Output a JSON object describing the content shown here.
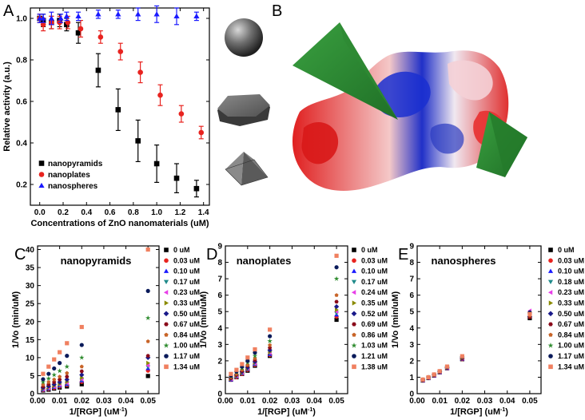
{
  "labels": {
    "a": "A",
    "b": "B",
    "c": "C",
    "d": "D",
    "e": "E"
  },
  "colors": {
    "black": "#000000",
    "red": "#e8231f",
    "blue": "#1a1aff",
    "teal": "#1f8a8a",
    "magenta": "#e83fe8",
    "olive": "#8a8a00",
    "navy": "#1a1a8a",
    "maroon": "#8a0a1a",
    "orange": "#c86428",
    "green": "#2e8b2e",
    "darkblue": "#0a1a5a",
    "salmon": "#f08060"
  },
  "shapes": {
    "items": [
      "sphere-icon",
      "plate-icon",
      "pyramid-icon"
    ]
  },
  "chart_data": [
    {
      "type": "scatter",
      "ylabel": "Relative activity (a.u.)",
      "xlabel": "Concentrations of ZnO nanomaterials (uM)",
      "xlim": [
        -0.08,
        1.45
      ],
      "ylim": [
        0.1,
        1.05
      ],
      "xticks": [
        "0.0",
        "0.2",
        "0.4",
        "0.6",
        "0.8",
        "1.0",
        "1.2",
        "1.4"
      ],
      "xtickvals": [
        0.0,
        0.2,
        0.4,
        0.6,
        0.8,
        1.0,
        1.2,
        1.4
      ],
      "yticks": [
        "0.2",
        "0.4",
        "0.6",
        "0.8",
        "1.0"
      ],
      "ytickvals": [
        0.2,
        0.4,
        0.6,
        0.8,
        1.0
      ],
      "series": [
        {
          "name": "nanopyramids",
          "marker": "square",
          "color": "#000000",
          "x": [
            0,
            0.03,
            0.1,
            0.17,
            0.23,
            0.33,
            0.5,
            0.67,
            0.84,
            1.0,
            1.17,
            1.34
          ],
          "y": [
            1.0,
            0.99,
            0.98,
            0.99,
            0.97,
            0.93,
            0.75,
            0.56,
            0.41,
            0.3,
            0.23,
            0.18
          ],
          "err": [
            0.02,
            0.03,
            0.03,
            0.03,
            0.03,
            0.05,
            0.08,
            0.1,
            0.1,
            0.09,
            0.07,
            0.04
          ]
        },
        {
          "name": "nanoplates",
          "marker": "circle",
          "color": "#e8231f",
          "x": [
            0,
            0.03,
            0.1,
            0.17,
            0.24,
            0.35,
            0.52,
            0.69,
            0.86,
            1.03,
            1.21,
            1.38
          ],
          "y": [
            1.0,
            0.97,
            0.98,
            0.98,
            0.98,
            0.95,
            0.91,
            0.84,
            0.74,
            0.63,
            0.54,
            0.45
          ],
          "err": [
            0.02,
            0.03,
            0.03,
            0.03,
            0.03,
            0.04,
            0.03,
            0.04,
            0.05,
            0.05,
            0.04,
            0.03
          ]
        },
        {
          "name": "nanospheres",
          "marker": "triangle",
          "color": "#1a1aff",
          "x": [
            0,
            0.03,
            0.1,
            0.18,
            0.23,
            0.33,
            0.5,
            0.67,
            0.84,
            1.0,
            1.17,
            1.34
          ],
          "y": [
            1.0,
            1.0,
            1.0,
            1.0,
            1.01,
            1.01,
            1.02,
            1.02,
            1.02,
            1.02,
            1.01,
            1.01
          ],
          "err": [
            0.02,
            0.02,
            0.03,
            0.02,
            0.02,
            0.02,
            0.02,
            0.02,
            0.03,
            0.04,
            0.04,
            0.02
          ]
        }
      ]
    },
    {
      "type": "scatter",
      "title": "nanopyramids",
      "ylabel": "1/Vo (min/uM)",
      "xlabel": "1/[RGP] (uM",
      "xlabel_sup": "-1",
      "xlabel_end": ")",
      "xlim": [
        0,
        0.055
      ],
      "ylim": [
        0,
        41
      ],
      "xticks": [
        "0.00",
        "0.01",
        "0.02",
        "0.03",
        "0.04",
        "0.05"
      ],
      "xtickvals": [
        0,
        0.01,
        0.02,
        0.03,
        0.04,
        0.05
      ],
      "yticks": [
        "0",
        "5",
        "10",
        "15",
        "20",
        "25",
        "30",
        "35",
        "40"
      ],
      "ytickvals": [
        0,
        5,
        10,
        15,
        20,
        25,
        30,
        35,
        40
      ],
      "x": [
        0.0025,
        0.005,
        0.0075,
        0.01,
        0.0133,
        0.02,
        0.05
      ],
      "series": [
        {
          "name": "0 uM",
          "marker": "square",
          "color": "#000000",
          "y": [
            0.9,
            1.1,
            1.4,
            1.7,
            2.0,
            2.6,
            4.9
          ]
        },
        {
          "name": "0.03 uM",
          "marker": "circle",
          "color": "#e8231f",
          "y": [
            1.0,
            1.3,
            1.6,
            2.0,
            2.4,
            3.3,
            6.4
          ]
        },
        {
          "name": "0.10 uM",
          "marker": "triangle",
          "color": "#1a1aff",
          "y": [
            1.1,
            1.4,
            1.8,
            2.2,
            2.6,
            3.6,
            7.0
          ]
        },
        {
          "name": "0.17 uM",
          "marker": "tri-down",
          "color": "#1f8a8a",
          "y": [
            1.2,
            1.5,
            1.9,
            2.3,
            2.8,
            3.8,
            7.4
          ]
        },
        {
          "name": "0.23 uM",
          "marker": "tri-left",
          "color": "#e83fe8",
          "y": [
            1.3,
            1.6,
            2.0,
            2.5,
            3.0,
            4.0,
            7.8
          ]
        },
        {
          "name": "0.33 uM",
          "marker": "tri-right",
          "color": "#8a8a00",
          "y": [
            1.4,
            1.8,
            2.2,
            2.7,
            3.3,
            4.4,
            8.5
          ]
        },
        {
          "name": "0.50 uM",
          "marker": "diamond",
          "color": "#1a1a8a",
          "y": [
            1.7,
            2.1,
            2.6,
            3.2,
            3.9,
            5.2,
            10.0
          ]
        },
        {
          "name": "0.67 uM",
          "marker": "hexagon",
          "color": "#8a0a1a",
          "y": [
            2.0,
            2.6,
            3.2,
            3.9,
            4.7,
            6.2,
            10.5
          ]
        },
        {
          "name": "0.84 uM",
          "marker": "pentagon",
          "color": "#c86428",
          "y": [
            2.5,
            3.2,
            3.9,
            4.7,
            5.7,
            7.5,
            14.5
          ]
        },
        {
          "name": "1.00 uM",
          "marker": "star",
          "color": "#2e8b2e",
          "y": [
            3.2,
            4.2,
            5.2,
            6.3,
            7.5,
            10.0,
            21.0
          ]
        },
        {
          "name": "1.17 uM",
          "marker": "circle",
          "color": "#0a1a5a",
          "y": [
            4.0,
            5.5,
            7.0,
            8.5,
            10.5,
            13.5,
            28.5
          ]
        },
        {
          "name": "1.34 uM",
          "marker": "square",
          "color": "#f08060",
          "y": [
            5.5,
            7.5,
            9.5,
            11.5,
            14.0,
            18.5,
            40.0
          ]
        }
      ]
    },
    {
      "type": "scatter",
      "title": "nanoplates",
      "ylabel": "1/Vo (min/uM)",
      "xlabel": "1/[RGP] (uM",
      "xlabel_sup": "-1",
      "xlabel_end": ")",
      "xlim": [
        0,
        0.055
      ],
      "ylim": [
        0,
        9
      ],
      "xticks": [
        "0.00",
        "0.01",
        "0.02",
        "0.03",
        "0.04",
        "0.05"
      ],
      "xtickvals": [
        0,
        0.01,
        0.02,
        0.03,
        0.04,
        0.05
      ],
      "yticks": [
        "0",
        "1",
        "2",
        "3",
        "4",
        "5",
        "6",
        "7",
        "8",
        "9"
      ],
      "ytickvals": [
        0,
        1,
        2,
        3,
        4,
        5,
        6,
        7,
        8,
        9
      ],
      "x": [
        0.0025,
        0.005,
        0.0075,
        0.01,
        0.0133,
        0.02,
        0.05
      ],
      "series": [
        {
          "name": "0 uM",
          "marker": "square",
          "color": "#000000",
          "y": [
            0.85,
            1.0,
            1.2,
            1.4,
            1.7,
            2.3,
            4.5
          ]
        },
        {
          "name": "0.03 uM",
          "marker": "circle",
          "color": "#e8231f",
          "y": [
            0.85,
            1.0,
            1.2,
            1.45,
            1.75,
            2.35,
            4.7
          ]
        },
        {
          "name": "0.10 uM",
          "marker": "triangle",
          "color": "#1a1aff",
          "y": [
            0.85,
            1.05,
            1.25,
            1.5,
            1.8,
            2.4,
            4.8
          ]
        },
        {
          "name": "0.17 uM",
          "marker": "tri-down",
          "color": "#1f8a8a",
          "y": [
            0.9,
            1.05,
            1.25,
            1.5,
            1.8,
            2.45,
            4.9
          ]
        },
        {
          "name": "0.24 uM",
          "marker": "tri-left",
          "color": "#e83fe8",
          "y": [
            0.9,
            1.1,
            1.3,
            1.55,
            1.85,
            2.5,
            5.0
          ]
        },
        {
          "name": "0.35 uM",
          "marker": "tri-right",
          "color": "#8a8a00",
          "y": [
            0.9,
            1.1,
            1.3,
            1.55,
            1.9,
            2.55,
            5.1
          ]
        },
        {
          "name": "0.52 uM",
          "marker": "diamond",
          "color": "#1a1a8a",
          "y": [
            0.95,
            1.15,
            1.35,
            1.6,
            1.95,
            2.65,
            5.3
          ]
        },
        {
          "name": "0.69 uM",
          "marker": "hexagon",
          "color": "#8a0a1a",
          "y": [
            0.95,
            1.15,
            1.4,
            1.7,
            2.05,
            2.8,
            5.6
          ]
        },
        {
          "name": "0.86 uM",
          "marker": "pentagon",
          "color": "#c86428",
          "y": [
            1.0,
            1.2,
            1.45,
            1.75,
            2.15,
            2.95,
            6.0
          ]
        },
        {
          "name": "1.03 uM",
          "marker": "star",
          "color": "#2e8b2e",
          "y": [
            1.05,
            1.3,
            1.55,
            1.9,
            2.3,
            3.2,
            7.0
          ]
        },
        {
          "name": "1.21 uM",
          "marker": "circle",
          "color": "#0a1a5a",
          "y": [
            1.1,
            1.35,
            1.65,
            2.0,
            2.5,
            3.5,
            7.7
          ]
        },
        {
          "name": "1.38 uM",
          "marker": "square",
          "color": "#f08060",
          "y": [
            1.2,
            1.45,
            1.8,
            2.2,
            2.7,
            3.9,
            8.4
          ]
        }
      ]
    },
    {
      "type": "scatter",
      "title": "nanospheres",
      "ylabel": "1/Vo (min/uM)",
      "xlabel": "1/[RGP] (uM",
      "xlabel_sup": "-1",
      "xlabel_end": ")",
      "xlim": [
        0,
        0.055
      ],
      "ylim": [
        0,
        9
      ],
      "xticks": [
        "0.00",
        "0.01",
        "0.02",
        "0.03",
        "0.04",
        "0.05"
      ],
      "xtickvals": [
        0,
        0.01,
        0.02,
        0.03,
        0.04,
        0.05
      ],
      "yticks": [
        "0",
        "1",
        "2",
        "3",
        "4",
        "5",
        "6",
        "7",
        "8",
        "9"
      ],
      "ytickvals": [
        0,
        1,
        2,
        3,
        4,
        5,
        6,
        7,
        8,
        9
      ],
      "x": [
        0.0025,
        0.005,
        0.0075,
        0.01,
        0.0133,
        0.02,
        0.05
      ],
      "series": [
        {
          "name": "0 uM",
          "marker": "square",
          "color": "#000000",
          "y": [
            0.8,
            0.95,
            1.1,
            1.3,
            1.55,
            2.1,
            4.6
          ]
        },
        {
          "name": "0.03 uM",
          "marker": "circle",
          "color": "#e8231f",
          "y": [
            0.8,
            0.95,
            1.1,
            1.3,
            1.55,
            2.1,
            4.7
          ]
        },
        {
          "name": "0.10 uM",
          "marker": "triangle",
          "color": "#1a1aff",
          "y": [
            0.8,
            0.95,
            1.1,
            1.3,
            1.55,
            2.12,
            4.75
          ]
        },
        {
          "name": "0.18 uM",
          "marker": "tri-down",
          "color": "#1f8a8a",
          "y": [
            0.82,
            0.96,
            1.12,
            1.32,
            1.57,
            2.14,
            4.8
          ]
        },
        {
          "name": "0.23 uM",
          "marker": "tri-left",
          "color": "#e83fe8",
          "y": [
            0.82,
            0.96,
            1.12,
            1.32,
            1.57,
            2.15,
            5.05
          ]
        },
        {
          "name": "0.33 uM",
          "marker": "tri-right",
          "color": "#8a8a00",
          "y": [
            0.82,
            0.97,
            1.13,
            1.33,
            1.58,
            2.16,
            4.85
          ]
        },
        {
          "name": "0.50 uM",
          "marker": "diamond",
          "color": "#1a1a8a",
          "y": [
            0.83,
            0.97,
            1.13,
            1.33,
            1.58,
            2.17,
            4.7
          ]
        },
        {
          "name": "0.67 uM",
          "marker": "hexagon",
          "color": "#8a0a1a",
          "y": [
            0.83,
            0.98,
            1.14,
            1.34,
            1.6,
            2.18,
            4.65
          ]
        },
        {
          "name": "0.84 uM",
          "marker": "pentagon",
          "color": "#c86428",
          "y": [
            0.84,
            0.98,
            1.14,
            1.35,
            1.6,
            2.2,
            4.75
          ]
        },
        {
          "name": "1.00 uM",
          "marker": "star",
          "color": "#2e8b2e",
          "y": [
            0.84,
            0.99,
            1.15,
            1.35,
            1.62,
            2.22,
            4.9
          ]
        },
        {
          "name": "1.17 uM",
          "marker": "circle",
          "color": "#0a1a5a",
          "y": [
            0.85,
            1.0,
            1.16,
            1.36,
            1.63,
            2.25,
            4.95
          ]
        },
        {
          "name": "1.34 uM",
          "marker": "square",
          "color": "#f08060",
          "y": [
            0.86,
            1.0,
            1.17,
            1.37,
            1.65,
            2.28,
            4.85
          ]
        }
      ]
    }
  ]
}
